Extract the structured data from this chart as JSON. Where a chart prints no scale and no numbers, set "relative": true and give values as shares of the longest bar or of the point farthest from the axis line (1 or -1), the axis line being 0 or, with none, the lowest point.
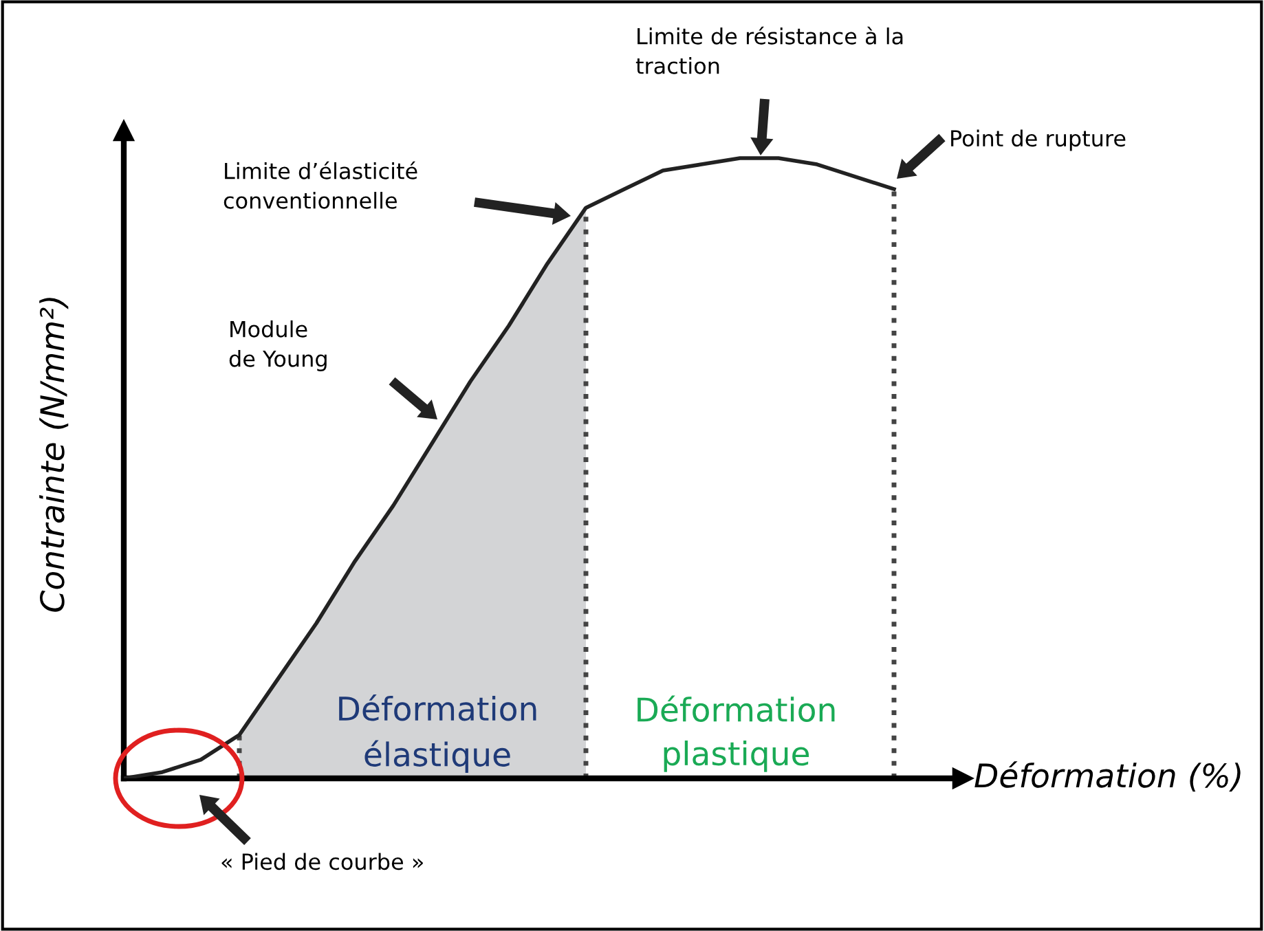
{
  "chart_data": {
    "type": "line",
    "relative": true,
    "xlabel": "Déformation (%)",
    "ylabel": "Contrainte (N/mm²)",
    "categories": [
      null,
      null,
      null,
      null,
      null,
      null,
      null,
      null,
      null,
      null,
      null,
      null,
      null,
      null,
      null,
      null,
      null,
      null,
      null,
      null,
      null
    ],
    "series": [
      {
        "type": "area",
        "color": "#d3d4d6",
        "values": [
          null,
          null,
          null,
          0.07,
          0.16,
          0.25,
          0.35,
          0.44,
          0.54,
          0.64,
          0.73,
          0.83,
          0.92,
          null,
          null,
          null,
          null,
          null,
          null,
          null,
          null
        ]
      },
      {
        "color": "#222222",
        "values": [
          0,
          0.01,
          0.03,
          0.07,
          0.16,
          0.25,
          0.35,
          0.44,
          0.54,
          0.64,
          0.73,
          0.83,
          0.92,
          0.95,
          0.98,
          0.99,
          1,
          1,
          0.99,
          0.97,
          0.95
        ]
      }
    ],
    "annotations": [
      "Limite de résistance à la traction",
      "Point de rupture",
      "Limite d’élasticité conventionnelle",
      "Module de Young",
      "« Pied de courbe »",
      "Déformation élastique",
      "Déformation plastique"
    ],
    "grid": false,
    "legend": false,
    "marker": "none",
    "line_style": "solid"
  }
}
